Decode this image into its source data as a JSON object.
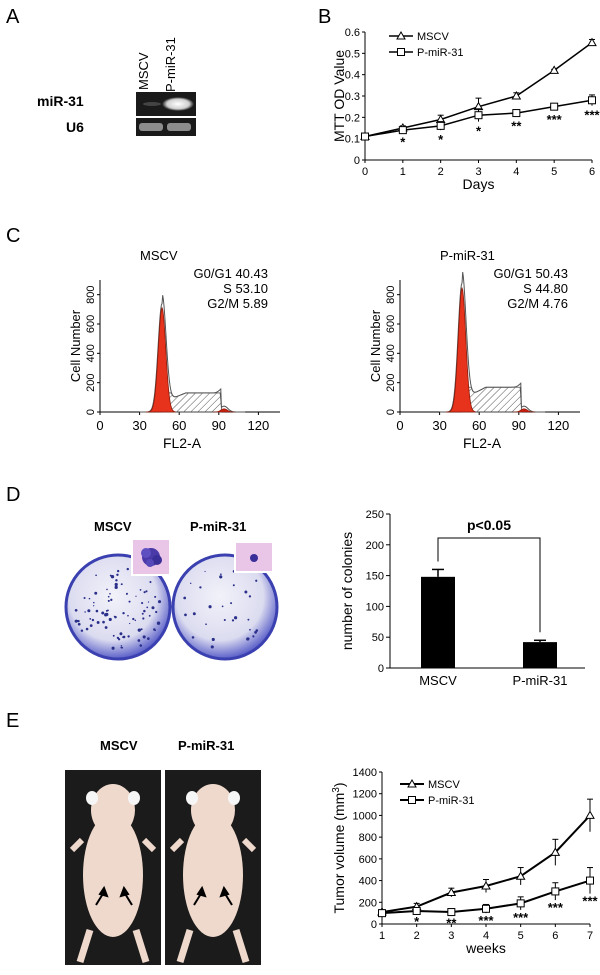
{
  "panel_labels": {
    "a": "A",
    "b": "B",
    "c": "C",
    "d": "D",
    "e": "E"
  },
  "panel_a": {
    "lanes": [
      "MSCV",
      "P-miR-31"
    ],
    "rows": [
      "miR-31",
      "U6"
    ]
  },
  "panel_b": {
    "chart_data": {
      "type": "line",
      "ylabel": "MTT OD Value",
      "xlabel": "Days",
      "x": [
        0,
        1,
        2,
        3,
        4,
        5,
        6
      ],
      "xlim": [
        0,
        6
      ],
      "ylim": [
        0,
        0.6
      ],
      "yticks": [
        "0",
        "0.1",
        "0.2",
        "0.3",
        "0.4",
        "0.5",
        "0.6"
      ],
      "series": [
        {
          "name": "MSCV",
          "values": [
            0.11,
            0.15,
            0.19,
            0.25,
            0.3,
            0.42,
            0.55
          ],
          "errors": [
            0.005,
            0.01,
            0.02,
            0.04,
            0.015,
            0.005,
            0.015
          ],
          "marker": "triangle"
        },
        {
          "name": "P-miR-31",
          "values": [
            0.11,
            0.14,
            0.16,
            0.21,
            0.22,
            0.25,
            0.28
          ],
          "errors": [
            0.005,
            0.01,
            0.02,
            0.03,
            0.015,
            0.015,
            0.025
          ],
          "marker": "square"
        }
      ],
      "significance": [
        {
          "x": 1,
          "label": "*"
        },
        {
          "x": 2,
          "label": "*"
        },
        {
          "x": 3,
          "label": "*"
        },
        {
          "x": 4,
          "label": "**"
        },
        {
          "x": 5,
          "label": "***"
        },
        {
          "x": 6,
          "label": "***"
        }
      ],
      "legend": "top-left"
    }
  },
  "panel_c": {
    "histograms": [
      {
        "title": "MSCV",
        "stats": [
          "G0/G1 40.43",
          "S 53.10",
          "G2/M  5.89"
        ],
        "xlabel": "FL2-A",
        "ylabel": "Cell Number",
        "xticks": [
          "0",
          "30",
          "60",
          "90",
          "120"
        ],
        "yticks": [
          "0",
          "200",
          "400",
          "600",
          "800"
        ],
        "g1_peak_x": 47,
        "peak_count": 740
      },
      {
        "title": "P-miR-31",
        "stats": [
          "G0/G1 50.43",
          "S 44.80",
          "G2/M  4.76"
        ],
        "xlabel": "FL2-A",
        "ylabel": "Cell Number",
        "xticks": [
          "0",
          "30",
          "60",
          "90",
          "120"
        ],
        "yticks": [
          "0",
          "200",
          "400",
          "600",
          "800"
        ],
        "g1_peak_x": 47,
        "peak_count": 880
      }
    ]
  },
  "panel_d": {
    "plates": [
      "MSCV",
      "P-miR-31"
    ],
    "chart_data": {
      "type": "bar",
      "categories": [
        "MSCV",
        "P-miR-31"
      ],
      "values": [
        148,
        42
      ],
      "errors": [
        12,
        3
      ],
      "ylabel": "number of colonies",
      "ylim": [
        0,
        250
      ],
      "yticks": [
        "0",
        "50",
        "100",
        "150",
        "200",
        "250"
      ],
      "annotation": "p<0.05"
    }
  },
  "panel_e": {
    "photos": [
      "MSCV",
      "P-miR-31"
    ],
    "chart_data": {
      "type": "line",
      "ylabel_main": "Tumor volume (mm",
      "ylabel_sup": "3",
      "ylabel_end": ")",
      "xlabel": "weeks",
      "x": [
        1,
        2,
        3,
        4,
        5,
        6,
        7
      ],
      "xlim": [
        1,
        7
      ],
      "ylim": [
        0,
        1400
      ],
      "yticks": [
        "0",
        "200",
        "400",
        "600",
        "800",
        "1000",
        "1200",
        "1400"
      ],
      "series": [
        {
          "name": "MSCV",
          "values": [
            110,
            160,
            290,
            350,
            440,
            660,
            1000
          ],
          "errors": [
            20,
            30,
            40,
            60,
            80,
            120,
            150
          ],
          "marker": "triangle"
        },
        {
          "name": "P-miR-31",
          "values": [
            100,
            120,
            110,
            140,
            190,
            300,
            400
          ],
          "errors": [
            20,
            30,
            30,
            40,
            60,
            80,
            120
          ],
          "marker": "square"
        }
      ],
      "significance": [
        {
          "x": 2,
          "label": "*"
        },
        {
          "x": 3,
          "label": "**"
        },
        {
          "x": 4,
          "label": "***"
        },
        {
          "x": 5,
          "label": "***"
        },
        {
          "x": 6,
          "label": "***"
        },
        {
          "x": 7,
          "label": "***"
        }
      ],
      "legend": "top-left"
    }
  },
  "colors": {
    "g1": "#e8331c",
    "g2m": "#c81e10",
    "bar": "#000000",
    "gel_dark": "#1a1a1a",
    "plate": "#4a4fc0"
  }
}
